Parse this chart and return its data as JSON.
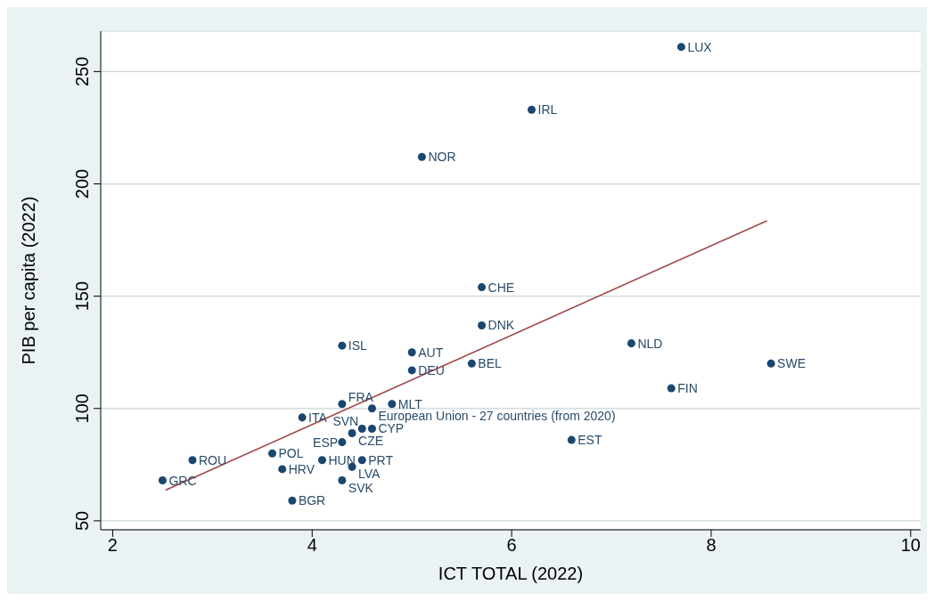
{
  "chart_data": {
    "type": "scatter",
    "xlabel": "ICT TOTAL (2022)",
    "ylabel": "PIB per capita (2022)",
    "xlim": [
      1.88,
      10.1
    ],
    "xticks": [
      2,
      4,
      6,
      8,
      10
    ],
    "ylim": [
      46,
      268
    ],
    "yticks": [
      50,
      100,
      150,
      200,
      250
    ],
    "grid": "y",
    "series": [
      {
        "marker": "circle",
        "color": "#1a476f",
        "x": [
          7.7,
          6.2,
          5.1,
          5.7,
          5.7,
          4.3,
          5.0,
          5.0,
          5.6,
          7.2,
          8.6,
          7.6,
          6.6,
          4.3,
          4.8,
          4.6,
          3.9,
          4.4,
          4.5,
          4.6,
          4.3,
          3.6,
          2.8,
          2.5,
          3.7,
          4.1,
          4.5,
          4.4,
          4.3,
          3.8
        ],
        "values": [
          261,
          233,
          212,
          154,
          137,
          128,
          125,
          117,
          120,
          129,
          120,
          109,
          86,
          102,
          102,
          100,
          96,
          89,
          91,
          91,
          85,
          80,
          77,
          68,
          73,
          77,
          77,
          74,
          68,
          59
        ],
        "value_labels": [
          "LUX",
          "IRL",
          "NOR",
          "CHE",
          "DNK",
          "ISL",
          "AUT",
          "DEU",
          "BEL",
          "NLD",
          "SWE",
          "FIN",
          "EST",
          "FRA",
          "MLT",
          "European Union - 27 countries (from 2020)",
          "ITA",
          "CZE",
          "SVN",
          "CYP",
          "ESP",
          "POL",
          "ROU",
          "GRC",
          "HRV",
          "HUN",
          "PRT",
          "LVA",
          "SVK",
          "BGR"
        ]
      },
      {
        "type": "line",
        "marker": "none",
        "color": "#a04848",
        "x": [
          2.53,
          8.56
        ],
        "values": [
          63.6,
          183.6
        ]
      }
    ]
  }
}
